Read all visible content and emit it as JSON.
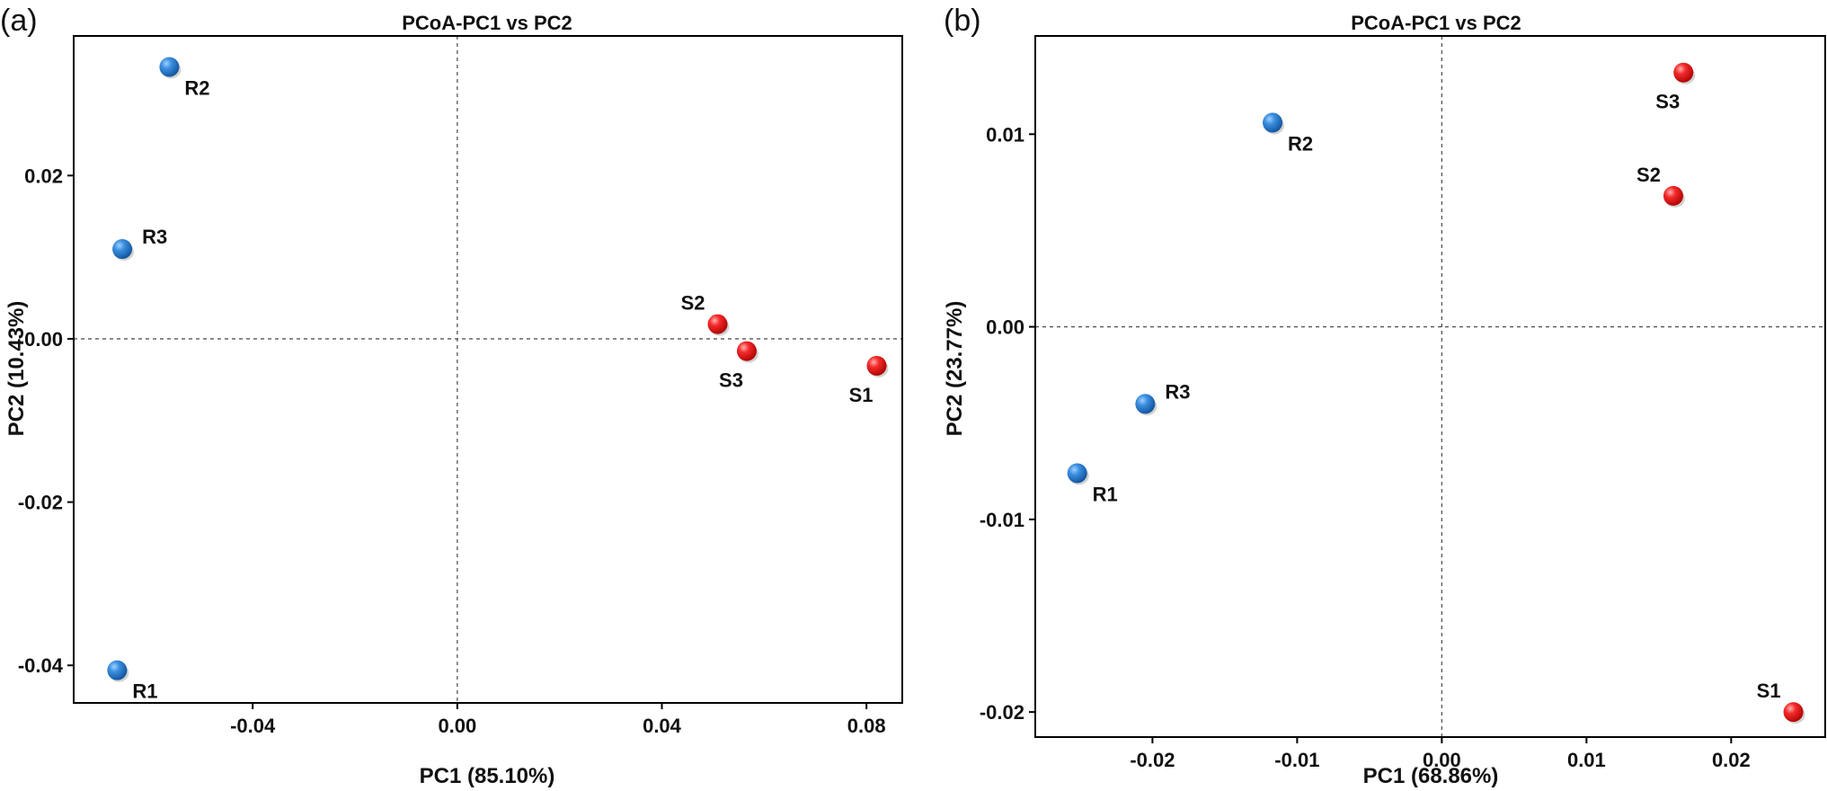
{
  "chart_data": [
    {
      "type": "scatter",
      "panel_label": "(a)",
      "title": "PCoA-PC1 vs PC2",
      "xlabel": "PC1 (85.10%)",
      "ylabel": "PC2 (10.43%)",
      "xlim": [
        -0.075,
        0.087
      ],
      "ylim": [
        -0.0446,
        0.0371
      ],
      "xticks": [
        -0.04,
        0.0,
        0.04,
        0.08
      ],
      "xtick_labels": [
        "-0.04",
        "0.00",
        "0.04",
        "0.08"
      ],
      "yticks": [
        -0.04,
        -0.02,
        0.0,
        0.02
      ],
      "ytick_labels": [
        "-0.04",
        "-0.02",
        "0.00",
        "0.02"
      ],
      "zero_lines": true,
      "grid": false,
      "legend": "none",
      "points": [
        {
          "label": "R1",
          "x": -0.0665,
          "y": -0.0406,
          "color": "#1a74c8",
          "label_pos": "below-right"
        },
        {
          "label": "R2",
          "x": -0.0563,
          "y": 0.0333,
          "color": "#1a74c8",
          "label_pos": "below-right"
        },
        {
          "label": "R3",
          "x": -0.0655,
          "y": 0.011,
          "color": "#1a74c8",
          "label_pos": "above-right"
        },
        {
          "label": "S1",
          "x": 0.082,
          "y": -0.0033,
          "color": "#e8131a",
          "label_pos": "below-left"
        },
        {
          "label": "S2",
          "x": 0.0509,
          "y": 0.0018,
          "color": "#e8131a",
          "label_pos": "above-left"
        },
        {
          "label": "S3",
          "x": 0.0566,
          "y": -0.0015,
          "color": "#e8131a",
          "label_pos": "below-left"
        }
      ]
    },
    {
      "type": "scatter",
      "panel_label": "(b)",
      "title": "PCoA-PC1 vs PC2",
      "xlabel": "PC1 (68.86%)",
      "ylabel": "PC2 (23.77%)",
      "xlim": [
        -0.0281,
        0.0265
      ],
      "ylim": [
        -0.0213,
        0.0151
      ],
      "xticks": [
        -0.02,
        -0.01,
        0.0,
        0.01,
        0.02
      ],
      "xtick_labels": [
        "-0.02",
        "-0.01",
        "0.00",
        "0.01",
        "0.02"
      ],
      "yticks": [
        -0.02,
        -0.01,
        0.0,
        0.01
      ],
      "ytick_labels": [
        "-0.02",
        "-0.01",
        "0.00",
        "0.01"
      ],
      "zero_lines": true,
      "grid": false,
      "legend": "none",
      "points": [
        {
          "label": "R1",
          "x": -0.0252,
          "y": -0.0076,
          "color": "#1a74c8",
          "label_pos": "below-right"
        },
        {
          "label": "R2",
          "x": -0.0117,
          "y": 0.0106,
          "color": "#1a74c8",
          "label_pos": "below-right"
        },
        {
          "label": "R3",
          "x": -0.0205,
          "y": -0.004,
          "color": "#1a74c8",
          "label_pos": "above-right"
        },
        {
          "label": "S1",
          "x": 0.0243,
          "y": -0.02,
          "color": "#e8131a",
          "label_pos": "above-left"
        },
        {
          "label": "S2",
          "x": 0.016,
          "y": 0.0068,
          "color": "#e8131a",
          "label_pos": "above-left"
        },
        {
          "label": "S3",
          "x": 0.0167,
          "y": 0.0132,
          "color": "#e8131a",
          "label_pos": "below-left"
        }
      ]
    }
  ]
}
